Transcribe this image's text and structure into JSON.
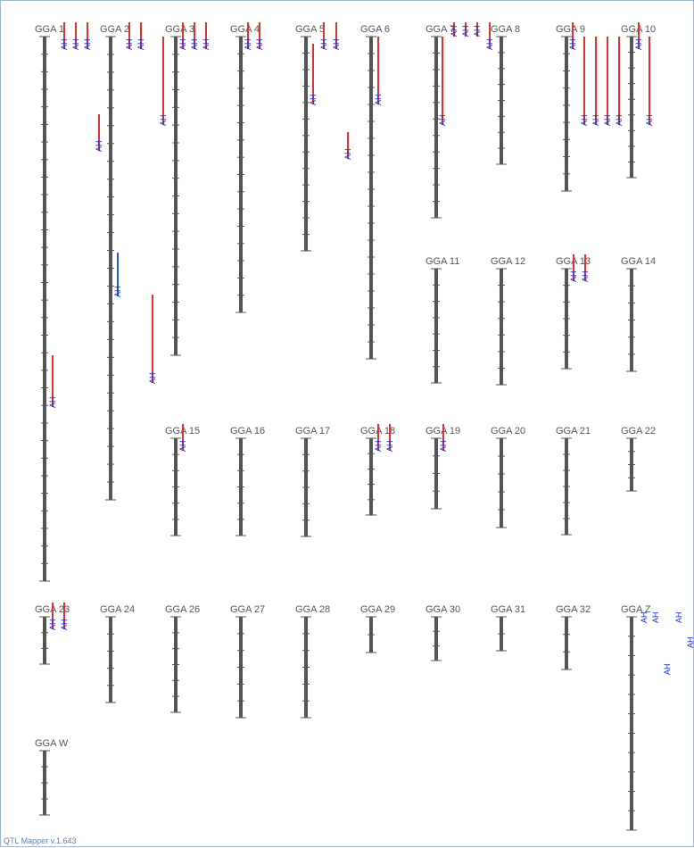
{
  "app": {
    "version_label": "QTL Mapper v.1.643"
  },
  "qtl_trait": "AH",
  "colors": {
    "chromosome": "#555555",
    "tick": "#555555",
    "qtl_red": "#e03030",
    "qtl_blue": "#2a5ad0",
    "label": "#1a2fd0"
  },
  "chromosomes": [
    {
      "name": "GGA 1",
      "ticks": 30
    },
    {
      "name": "GGA 2",
      "ticks": 25
    },
    {
      "name": "GGA 3",
      "ticks": 17
    },
    {
      "name": "GGA 4",
      "ticks": 15
    },
    {
      "name": "GGA 5",
      "ticks": 12
    },
    {
      "name": "GGA 6",
      "ticks": 18
    },
    {
      "name": "GGA 7",
      "ticks": 10
    },
    {
      "name": "GGA 8",
      "ticks": 7
    },
    {
      "name": "GGA 9",
      "ticks": 8
    },
    {
      "name": "GGA 10",
      "ticks": 8
    },
    {
      "name": "GGA 11",
      "ticks": 6
    },
    {
      "name": "GGA 12",
      "ticks": 6
    },
    {
      "name": "GGA 13",
      "ticks": 5
    },
    {
      "name": "GGA 14",
      "ticks": 5
    },
    {
      "name": "GGA 15",
      "ticks": 5
    },
    {
      "name": "GGA 16",
      "ticks": 5
    },
    {
      "name": "GGA 17",
      "ticks": 5
    },
    {
      "name": "GGA 18",
      "ticks": 4
    },
    {
      "name": "GGA 19",
      "ticks": 3
    },
    {
      "name": "GGA 20",
      "ticks": 4
    },
    {
      "name": "GGA 21",
      "ticks": 5
    },
    {
      "name": "GGA 22",
      "ticks": 3
    },
    {
      "name": "GGA 23",
      "ticks": 2
    },
    {
      "name": "GGA 24",
      "ticks": 4
    },
    {
      "name": "GGA 26",
      "ticks": 5
    },
    {
      "name": "GGA 27",
      "ticks": 5
    },
    {
      "name": "GGA 28",
      "ticks": 5
    },
    {
      "name": "GGA 29",
      "ticks": 1
    },
    {
      "name": "GGA 30",
      "ticks": 2
    },
    {
      "name": "GGA 31",
      "ticks": 1
    },
    {
      "name": "GGA 32",
      "ticks": 2
    },
    {
      "name": "GGA Z",
      "ticks": 10
    },
    {
      "name": "GGA W",
      "ticks": 3
    }
  ]
}
